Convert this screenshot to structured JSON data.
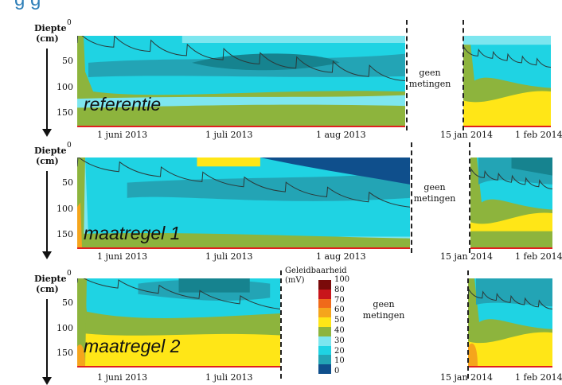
{
  "header": {
    "title_fragment": "g                                              g"
  },
  "colors": {
    "olive": "#8db43d",
    "cyan": "#1fd3e3",
    "lightcyan": "#7de6ef",
    "teal": "#23a4b5",
    "darkteal": "#16838f",
    "navy": "#0f4f8c",
    "yellow": "#ffe617",
    "orange": "#f5a51c",
    "red": "#e02020"
  },
  "axis": {
    "ylabel_line1": "Diepte",
    "ylabel_line2": "(cm)",
    "ticks": [
      "50",
      "100",
      "150"
    ],
    "zero": "0"
  },
  "no_data_label": {
    "line1": "geen",
    "line2": "metingen"
  },
  "chart_data": [
    {
      "type": "heatmap",
      "panel_label": "referentie",
      "ylabel": "Diepte (cm)",
      "ylim": [
        0,
        175
      ],
      "x_ticks": [
        "1 juni 2013",
        "1 juli 2013",
        "1 aug 2013"
      ],
      "x_ticks_right": [
        "15 jan 2014",
        "1 feb 2014"
      ],
      "gap_label": "geen metingen"
    },
    {
      "type": "heatmap",
      "panel_label": "maatregel 1",
      "ylabel": "Diepte (cm)",
      "ylim": [
        0,
        175
      ],
      "x_ticks": [
        "1 juni 2013",
        "1 juli 2013",
        "1 aug 2013"
      ],
      "x_ticks_right": [
        "15 jan 2014",
        "1 feb 2014"
      ],
      "gap_label": "geen metingen"
    },
    {
      "type": "heatmap",
      "panel_label": "maatregel 2",
      "ylabel": "Diepte (cm)",
      "ylim": [
        0,
        175
      ],
      "x_ticks": [
        "1 juni 2013",
        "1 juli 2013"
      ],
      "x_ticks_right": [
        "15 jan 2014",
        "1 feb 2014"
      ],
      "gap_label": "geen metingen"
    }
  ],
  "legend": {
    "title_line1": "Geleidbaarheid",
    "title_line2": "(mV)",
    "levels": [
      "100",
      "80",
      "70",
      "60",
      "50",
      "40",
      "30",
      "20",
      "10",
      "0"
    ],
    "level_colors": [
      "#7a0a0a",
      "#c8151b",
      "#f06a1a",
      "#f5a51c",
      "#ffe617",
      "#8db43d",
      "#7de6ef",
      "#1fd3e3",
      "#23a4b5",
      "#0f4f8c"
    ]
  }
}
